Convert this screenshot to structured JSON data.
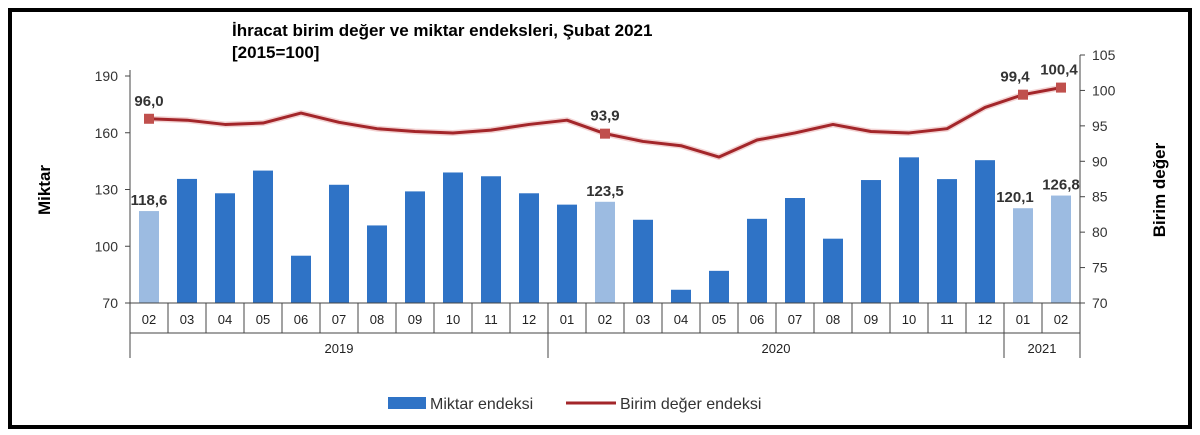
{
  "chart_data": {
    "type": "bar+line",
    "title": "İhracat birim değer ve miktar endeksleri, Şubat 2021",
    "subtitle": "[2015=100]",
    "ylabel_left": "Miktar",
    "ylabel_right": "Birim değer",
    "ylim_left": [
      70,
      190
    ],
    "yticks_left": [
      70,
      100,
      130,
      160,
      190
    ],
    "ylim_right": [
      70,
      105
    ],
    "yticks_right": [
      70,
      75,
      80,
      85,
      90,
      95,
      100,
      105
    ],
    "categories": [
      "02",
      "03",
      "04",
      "05",
      "06",
      "07",
      "08",
      "09",
      "10",
      "11",
      "12",
      "01",
      "02",
      "03",
      "04",
      "05",
      "06",
      "07",
      "08",
      "09",
      "10",
      "11",
      "12",
      "01",
      "02"
    ],
    "years": [
      {
        "label": "2019",
        "count": 11
      },
      {
        "label": "2020",
        "count": 12
      },
      {
        "label": "2021",
        "count": 2
      }
    ],
    "legend_position": "bottom",
    "grid": false,
    "series": [
      {
        "name": "Miktar endeksi",
        "type": "bar",
        "axis": "left",
        "color": "#2f73c6",
        "highlight_color": "#9cbbe1",
        "highlighted": [
          0,
          12,
          23,
          24
        ],
        "values": [
          118.6,
          135.6,
          128,
          140,
          95,
          132.5,
          111,
          129,
          139,
          137,
          128,
          122,
          123.5,
          114,
          77,
          87,
          114.5,
          125.5,
          104,
          135,
          147,
          135.5,
          145.5,
          120.1,
          126.8
        ],
        "labels": {
          "0": "118,6",
          "12": "123,5",
          "23": "120,1",
          "24": "126,8"
        }
      },
      {
        "name": "Birim değer endeksi",
        "type": "line",
        "axis": "right",
        "color": "#a3262a",
        "values": [
          96.0,
          95.8,
          95.2,
          95.4,
          96.8,
          95.5,
          94.6,
          94.2,
          94.0,
          94.4,
          95.2,
          95.8,
          93.9,
          92.8,
          92.2,
          90.6,
          93.0,
          94.0,
          95.2,
          94.2,
          94.0,
          94.6,
          97.6,
          99.4,
          100.4
        ],
        "markers": [
          0,
          12,
          23,
          24
        ],
        "labels": {
          "0": "96,0",
          "12": "93,9",
          "23": "99,4",
          "24": "100,4"
        }
      }
    ]
  }
}
